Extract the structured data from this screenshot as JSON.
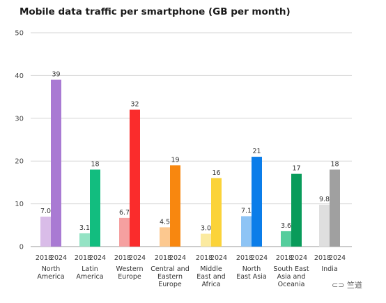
{
  "chart_data": {
    "type": "bar",
    "title": "Mobile data traffic per smartphone (GB per month)",
    "xlabel": "",
    "ylabel": "",
    "ylim": [
      0,
      50
    ],
    "yticks": [
      0,
      10,
      20,
      30,
      40,
      50
    ],
    "grid": true,
    "subcategories": [
      "2018",
      "2024"
    ],
    "categories": [
      {
        "label": [
          "North",
          "America"
        ],
        "colors": [
          "#d9bce8",
          "#a97ad3"
        ],
        "values": [
          7.0,
          39
        ],
        "value_labels": [
          "7.0",
          "39"
        ]
      },
      {
        "label": [
          "Latin",
          "America"
        ],
        "colors": [
          "#94e3c4",
          "#12bd7f"
        ],
        "values": [
          3.1,
          18
        ],
        "value_labels": [
          "3.1",
          "18"
        ]
      },
      {
        "label": [
          "Western",
          "Europe"
        ],
        "colors": [
          "#f5a0a0",
          "#fa2c2c"
        ],
        "values": [
          6.7,
          32
        ],
        "value_labels": [
          "6.7",
          "32"
        ]
      },
      {
        "label": [
          "Central and",
          "Eastern",
          "Europe"
        ],
        "colors": [
          "#fcc88f",
          "#f8870f"
        ],
        "values": [
          4.5,
          19
        ],
        "value_labels": [
          "4.5",
          "19"
        ]
      },
      {
        "label": [
          "Middle",
          "East and",
          "Africa"
        ],
        "colors": [
          "#fbeaa0",
          "#fbd339"
        ],
        "values": [
          3.0,
          16
        ],
        "value_labels": [
          "3.0",
          "16"
        ]
      },
      {
        "label": [
          "North",
          "East Asia"
        ],
        "colors": [
          "#8ec4f5",
          "#0b7de9"
        ],
        "values": [
          7.1,
          21
        ],
        "value_labels": [
          "7.1",
          "21"
        ]
      },
      {
        "label": [
          "South East",
          "Asia and",
          "Oceania"
        ],
        "colors": [
          "#54cd9c",
          "#089b5a"
        ],
        "values": [
          3.6,
          17
        ],
        "value_labels": [
          "3.6",
          "17"
        ]
      },
      {
        "label": [
          "India"
        ],
        "colors": [
          "#dfdfdf",
          "#a0a0a0"
        ],
        "values": [
          9.8,
          18
        ],
        "value_labels": [
          "9.8",
          "18"
        ]
      }
    ]
  },
  "watermark": "⊂⊃ 竺道"
}
